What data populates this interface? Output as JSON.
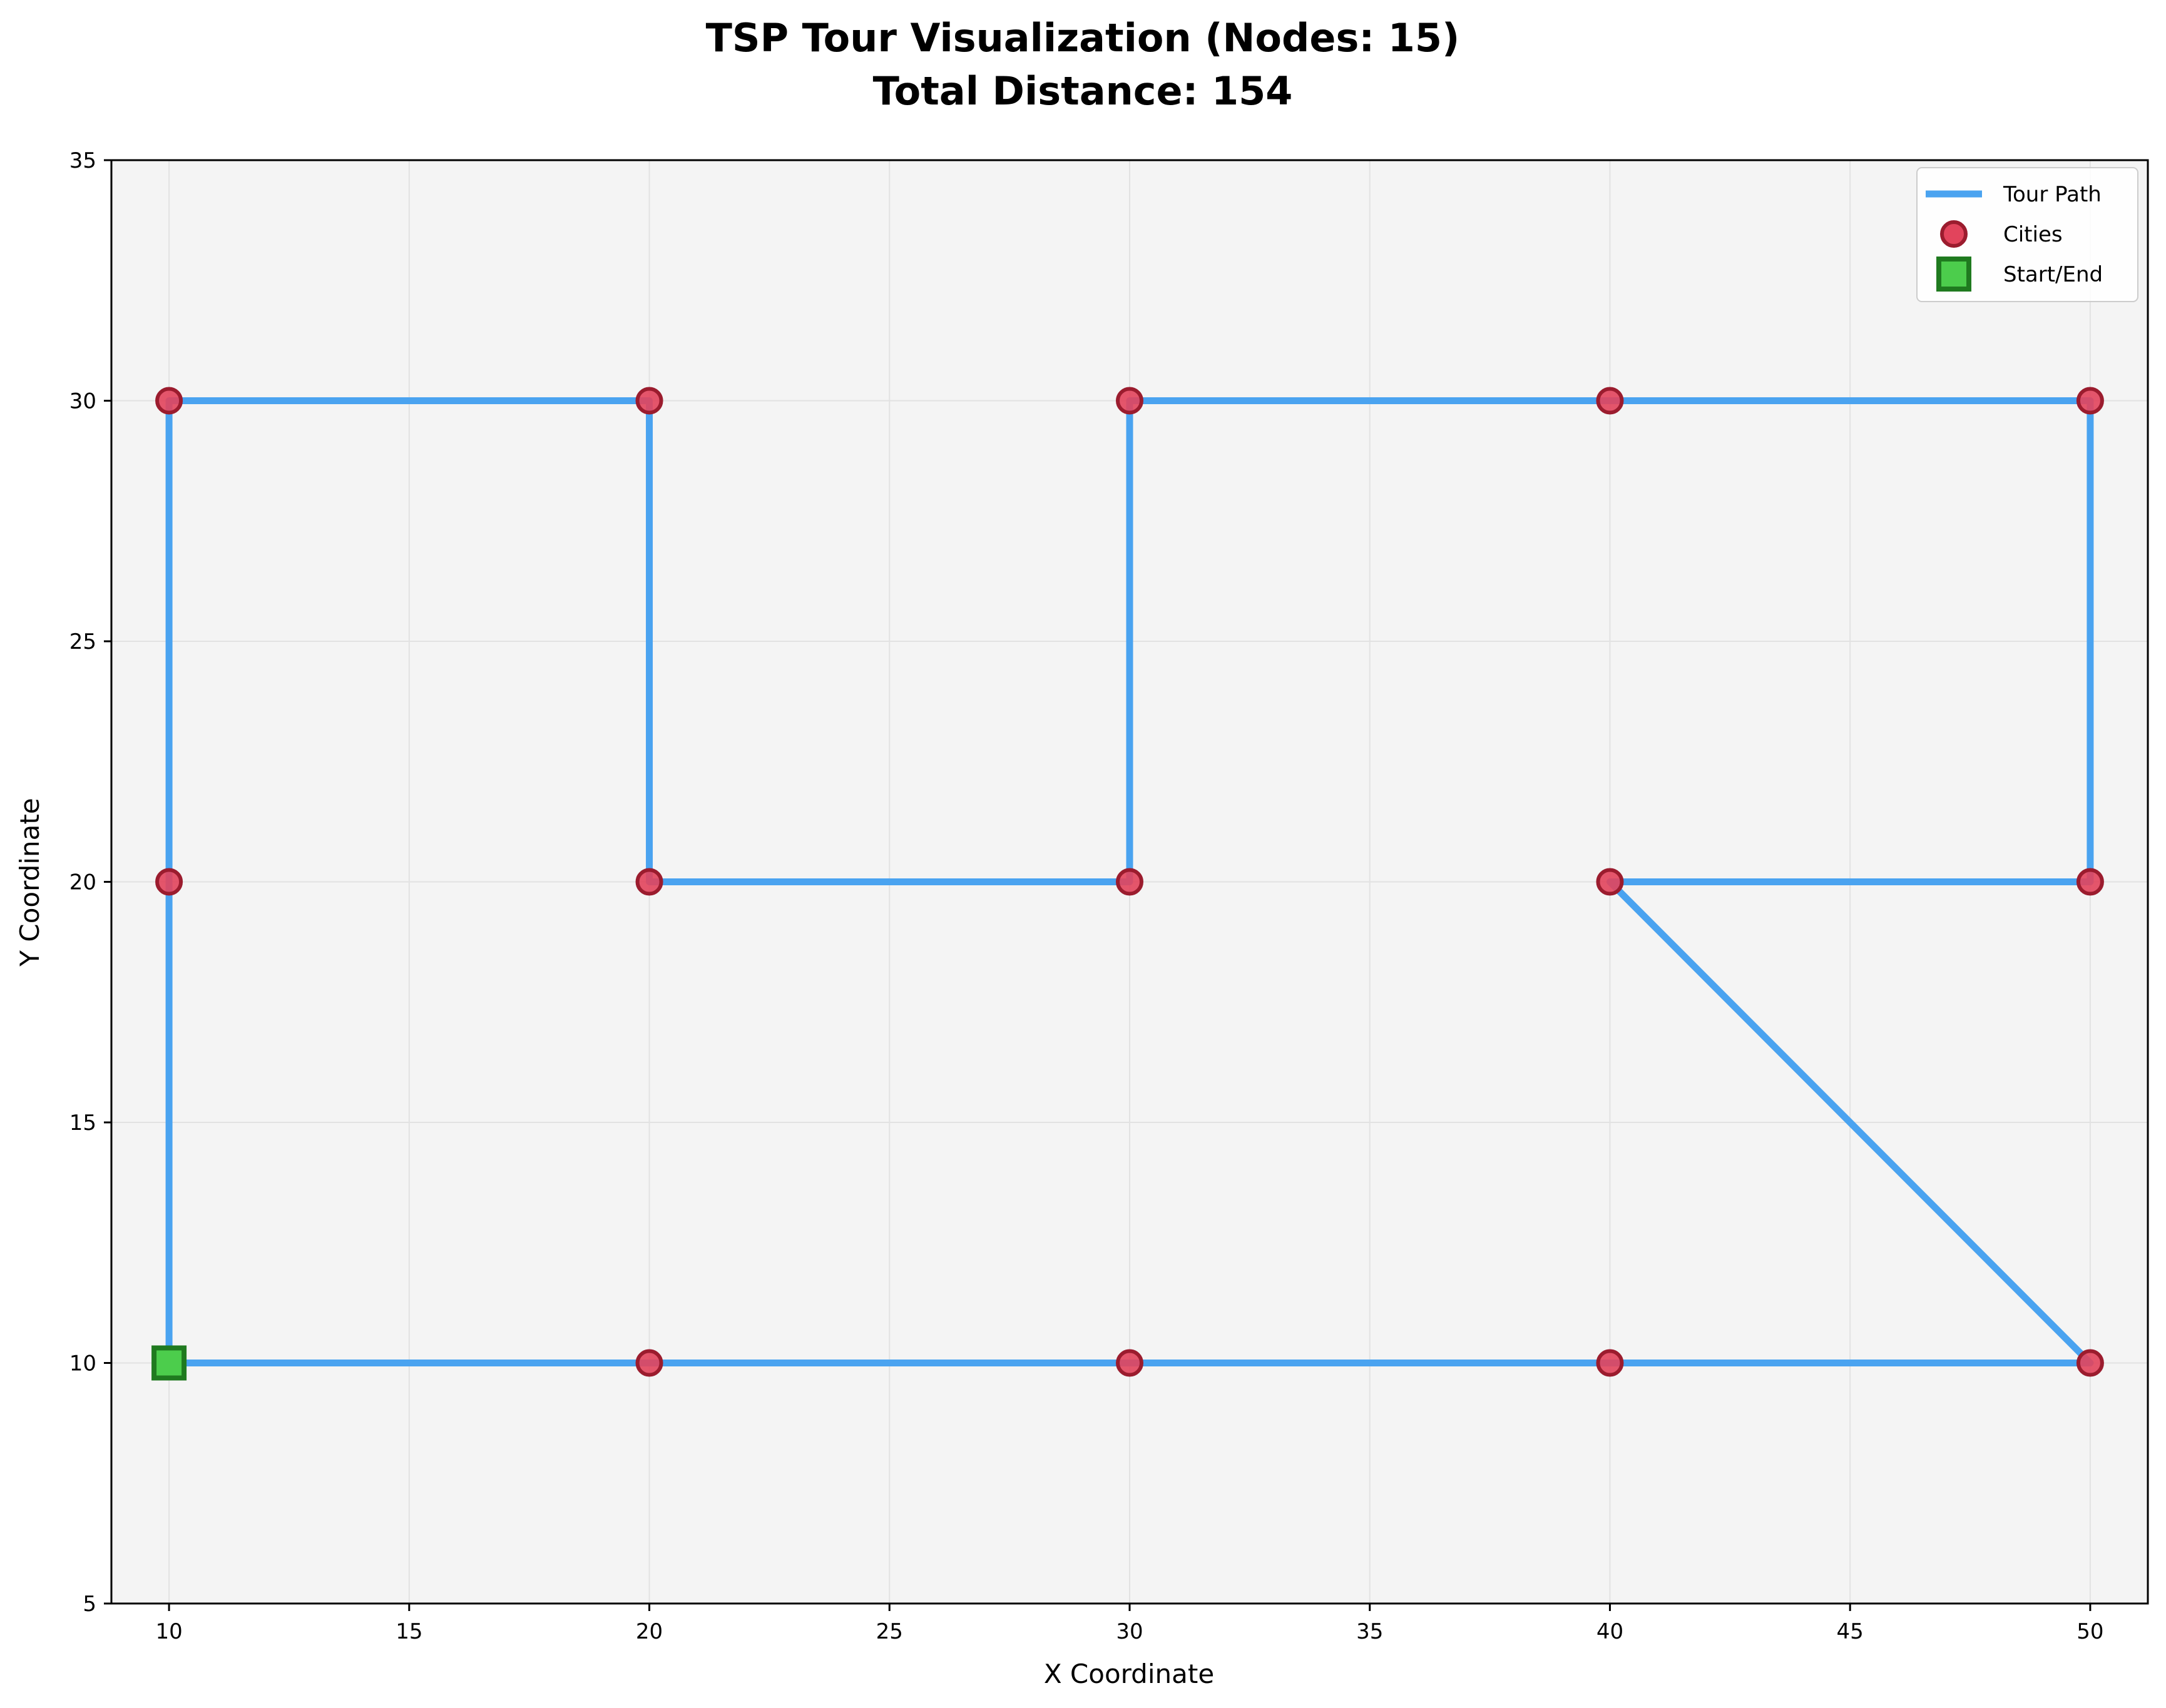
{
  "chart_data": {
    "type": "line",
    "title_line1": "TSP Tour Visualization (Nodes: 15)",
    "title_line2": "Total Distance: 154",
    "xlabel": "X Coordinate",
    "ylabel": "Y Coordinate",
    "xlim": [
      8.8,
      51.2
    ],
    "ylim": [
      5,
      35
    ],
    "xticks": [
      10,
      15,
      20,
      25,
      30,
      35,
      40,
      45,
      50
    ],
    "yticks": [
      5,
      10,
      15,
      20,
      25,
      30,
      35
    ],
    "grid": true,
    "legend_position": "top-right",
    "legend": [
      {
        "key": "tour",
        "label": "Tour Path"
      },
      {
        "key": "cities",
        "label": "Cities"
      },
      {
        "key": "start",
        "label": "Start/End"
      }
    ],
    "tour_path": [
      [
        10,
        10
      ],
      [
        20,
        10
      ],
      [
        30,
        10
      ],
      [
        40,
        10
      ],
      [
        50,
        10
      ],
      [
        40,
        20
      ],
      [
        50,
        20
      ],
      [
        50,
        30
      ],
      [
        40,
        30
      ],
      [
        30,
        30
      ],
      [
        30,
        20
      ],
      [
        20,
        20
      ],
      [
        20,
        30
      ],
      [
        10,
        30
      ],
      [
        10,
        20
      ],
      [
        10,
        10
      ]
    ],
    "cities": [
      [
        10,
        10
      ],
      [
        20,
        10
      ],
      [
        30,
        10
      ],
      [
        40,
        10
      ],
      [
        50,
        10
      ],
      [
        40,
        20
      ],
      [
        50,
        20
      ],
      [
        50,
        30
      ],
      [
        40,
        30
      ],
      [
        30,
        30
      ],
      [
        30,
        20
      ],
      [
        20,
        20
      ],
      [
        20,
        30
      ],
      [
        10,
        30
      ],
      [
        10,
        20
      ]
    ],
    "start_end": [
      10,
      10
    ],
    "colors": {
      "tour_path": "#4aa3f0",
      "city_fill": "#e2445c",
      "city_edge": "#9b1c2e",
      "start_fill": "#4ccd4c",
      "start_edge": "#1f7a1f",
      "plot_background": "#f4f4f4",
      "grid": "#e2e2e2"
    }
  }
}
